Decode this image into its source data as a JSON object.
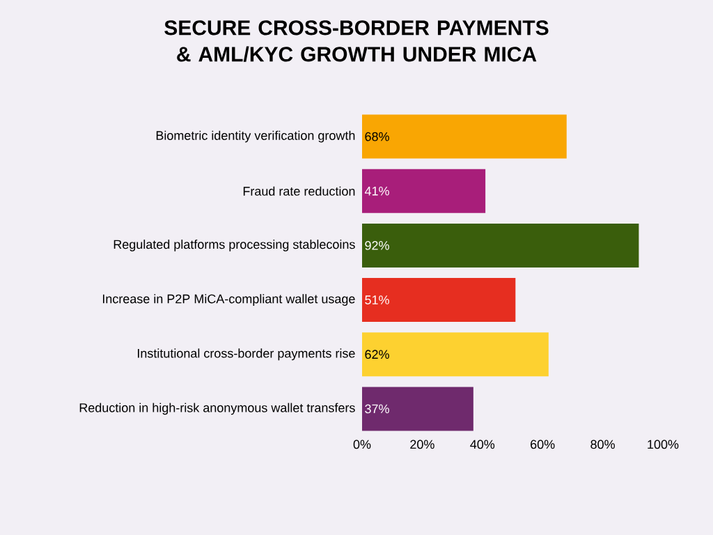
{
  "chart_data": {
    "type": "bar",
    "orientation": "horizontal",
    "title": "SECURE CROSS-BORDER PAYMENTS & AML/KYC GROWTH UNDER MICA",
    "categories": [
      "Biometric identity verification growth",
      "Fraud rate reduction",
      "Regulated platforms processing stablecoins",
      "Increase in P2P MiCA-compliant wallet usage",
      "Institutional cross-border payments rise",
      "Reduction in high-risk anonymous wallet transfers"
    ],
    "values": [
      68,
      41,
      92,
      51,
      62,
      37
    ],
    "value_labels": [
      "68%",
      "41%",
      "92%",
      "51%",
      "62%",
      "37%"
    ],
    "colors": [
      "#f9a603",
      "#a81e7a",
      "#3a5e0c",
      "#e62e20",
      "#fdd130",
      "#6f2a6d"
    ],
    "xlim": [
      0,
      100
    ],
    "xticks": [
      {
        "value": 0,
        "label": "0%"
      },
      {
        "value": 20,
        "label": "20%"
      },
      {
        "value": 40,
        "label": "40%"
      },
      {
        "value": 60,
        "label": "60%"
      },
      {
        "value": 80,
        "label": "80%"
      },
      {
        "value": 100,
        "label": "100%"
      }
    ]
  }
}
